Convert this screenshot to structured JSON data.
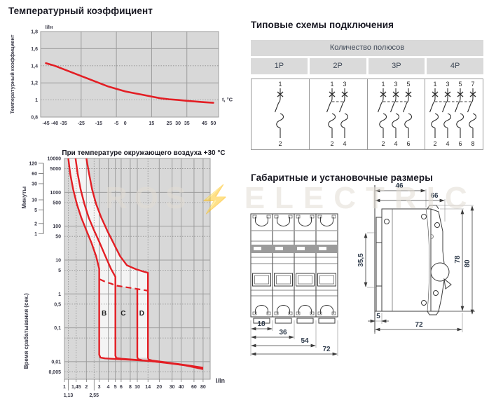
{
  "watermark": {
    "left": "ROS",
    "bolt": "⚡",
    "right": "ELECTRIC"
  },
  "sections": {
    "schemes": {
      "title": "Типовые схемы подключения",
      "header": "Количество полюсов",
      "columns": [
        {
          "label": "1P",
          "poles": 1,
          "top_terminals": [
            "1"
          ],
          "bottom_terminals": [
            "2"
          ]
        },
        {
          "label": "2P",
          "poles": 2,
          "top_terminals": [
            "1",
            "3"
          ],
          "bottom_terminals": [
            "2",
            "4"
          ]
        },
        {
          "label": "3P",
          "poles": 3,
          "top_terminals": [
            "1",
            "3",
            "5"
          ],
          "bottom_terminals": [
            "2",
            "4",
            "6"
          ]
        },
        {
          "label": "4P",
          "poles": 4,
          "top_terminals": [
            "1",
            "3",
            "5",
            "7"
          ],
          "bottom_terminals": [
            "2",
            "4",
            "6",
            "8"
          ]
        }
      ]
    },
    "dimensions": {
      "title": "Габаритные и установочные размеры",
      "front": {
        "dims": [
          "18",
          "36",
          "54",
          "72"
        ]
      },
      "side": {
        "top_small": "46",
        "top_wide": "66",
        "left": "35,5",
        "right_inner": "78",
        "right_outer": "80",
        "bottom_small": "5",
        "bottom_wide": "72"
      }
    }
  },
  "chart_data": [
    {
      "id": "temperature_coefficient",
      "type": "line",
      "title": "Температурный коэффициент",
      "xlabel": "t, °C",
      "ylabel": "Температурный коэффициент",
      "top_axis_label": "I/Iн",
      "xlim": [
        -48,
        53
      ],
      "ylim": [
        0.8,
        1.8
      ],
      "line_color": "#e31e24",
      "grid": {
        "x_solid": [
          -25,
          -5,
          15,
          35
        ],
        "y_solid": [
          1.6,
          1.2
        ],
        "y_dotted": [
          1.4,
          1.0
        ]
      },
      "x_ticks": [
        [
          -45,
          "-45"
        ],
        [
          -40,
          "-40"
        ],
        [
          -35,
          "-35"
        ],
        [
          -25,
          "-25"
        ],
        [
          -15,
          "-15"
        ],
        [
          -5,
          "-5"
        ],
        [
          0,
          "0"
        ],
        [
          15,
          "15"
        ],
        [
          25,
          "25"
        ],
        [
          30,
          "30"
        ],
        [
          35,
          "35"
        ],
        [
          45,
          "45"
        ],
        [
          50,
          "50"
        ]
      ],
      "y_ticks": [
        [
          0.8,
          "0,8"
        ],
        [
          1,
          "1"
        ],
        [
          1.2,
          "1,2"
        ],
        [
          1.4,
          "1,4"
        ],
        [
          1.6,
          "1,6"
        ],
        [
          1.8,
          "1,8"
        ]
      ],
      "points": [
        [
          -45,
          1.43
        ],
        [
          -40,
          1.4
        ],
        [
          -35,
          1.36
        ],
        [
          -30,
          1.32
        ],
        [
          -25,
          1.28
        ],
        [
          -20,
          1.24
        ],
        [
          -15,
          1.2
        ],
        [
          -10,
          1.16
        ],
        [
          -5,
          1.13
        ],
        [
          0,
          1.1
        ],
        [
          5,
          1.08
        ],
        [
          10,
          1.06
        ],
        [
          15,
          1.04
        ],
        [
          20,
          1.02
        ],
        [
          25,
          1.008
        ],
        [
          30,
          1.0
        ],
        [
          35,
          0.99
        ],
        [
          40,
          0.982
        ],
        [
          45,
          0.974
        ],
        [
          50,
          0.967
        ]
      ]
    },
    {
      "id": "trip_curves",
      "type": "line-loglog",
      "title": "При температуре окружающего воздуха +30 °C",
      "xlabel": "I/In",
      "ylabel": "Время срабатывания (сек.)",
      "ylabel_minutes": "Минуты",
      "xlim": [
        1,
        100
      ],
      "ylim": [
        0.003,
        10000
      ],
      "line_color": "#e31e24",
      "grid": {
        "x_solid": [
          1,
          2,
          3,
          4,
          5,
          6,
          8,
          10,
          20,
          30,
          40,
          60,
          80,
          100
        ],
        "x_dotted": [
          1.13,
          1.45,
          2.55,
          14
        ],
        "y_solid": [
          10000,
          1000,
          100,
          10,
          1,
          0.1,
          0.01
        ],
        "y_dotted": [
          5000,
          500,
          50,
          5,
          0.5,
          0.05,
          0.005
        ]
      },
      "x_ticks_row1": [
        [
          1,
          "1"
        ],
        [
          1.45,
          "1,45"
        ],
        [
          2,
          "2"
        ],
        [
          3,
          "3"
        ],
        [
          4,
          "4"
        ],
        [
          5,
          "5"
        ],
        [
          6,
          "6"
        ],
        [
          8,
          "8"
        ],
        [
          10,
          "10"
        ],
        [
          14,
          "14"
        ],
        [
          20,
          "20"
        ],
        [
          30,
          "30"
        ],
        [
          40,
          "40"
        ],
        [
          60,
          "60"
        ],
        [
          80,
          "80"
        ]
      ],
      "x_ticks_row2": [
        [
          1.13,
          "1,13"
        ],
        [
          2.55,
          "2,55"
        ]
      ],
      "y_ticks_seconds": [
        [
          10000,
          "10000"
        ],
        [
          5000,
          "5000"
        ],
        [
          1000,
          "1000"
        ],
        [
          500,
          "500"
        ],
        [
          100,
          "100"
        ],
        [
          50,
          "50"
        ],
        [
          10,
          "10"
        ],
        [
          5,
          "5"
        ],
        [
          1,
          "1"
        ],
        [
          0.5,
          "0,5"
        ],
        [
          0.1,
          "0,1"
        ],
        [
          0.01,
          "0,01"
        ],
        [
          0.005,
          "0,005"
        ]
      ],
      "y_ticks_minutes": [
        [
          7200,
          "120"
        ],
        [
          3600,
          "60"
        ],
        [
          1800,
          "30"
        ],
        [
          600,
          "10"
        ],
        [
          300,
          "5"
        ],
        [
          120,
          "2"
        ],
        [
          60,
          "1"
        ]
      ],
      "zones": [
        {
          "label": "B",
          "x": 3.5,
          "y": 0.23
        },
        {
          "label": "C",
          "x": 6.4,
          "y": 0.23
        },
        {
          "label": "D",
          "x": 11.5,
          "y": 0.23
        }
      ],
      "curves": {
        "b_min": [
          [
            1.13,
            10000
          ],
          [
            1.2,
            3500
          ],
          [
            1.32,
            1200
          ],
          [
            1.48,
            450
          ],
          [
            1.7,
            180
          ],
          [
            2.0,
            75
          ],
          [
            2.35,
            32
          ],
          [
            2.72,
            13
          ],
          [
            3.0,
            5.5
          ],
          [
            3.0,
            0.016
          ],
          [
            3.12,
            0.0132
          ],
          [
            3.6,
            0.0125
          ],
          [
            5,
            0.012
          ],
          [
            8,
            0.0114
          ],
          [
            12,
            0.0108
          ],
          [
            20,
            0.0098
          ],
          [
            35,
            0.0086
          ],
          [
            55,
            0.0075
          ],
          [
            80,
            0.0066
          ]
        ],
        "c_min": [
          [
            1.42,
            10000
          ],
          [
            1.52,
            3500
          ],
          [
            1.67,
            1200
          ],
          [
            1.88,
            450
          ],
          [
            2.15,
            180
          ],
          [
            2.55,
            75
          ],
          [
            3.05,
            32
          ],
          [
            3.65,
            13
          ],
          [
            4.35,
            5.5
          ],
          [
            5.0,
            3.2
          ],
          [
            5.0,
            0.015
          ],
          [
            5.15,
            0.0128
          ],
          [
            6,
            0.0122
          ],
          [
            9,
            0.0114
          ],
          [
            14,
            0.0106
          ],
          [
            25,
            0.0092
          ],
          [
            45,
            0.0078
          ],
          [
            80,
            0.0063
          ]
        ],
        "d_max": [
          [
            2.0,
            10000
          ],
          [
            2.18,
            3500
          ],
          [
            2.4,
            1200
          ],
          [
            2.72,
            450
          ],
          [
            3.2,
            180
          ],
          [
            3.85,
            75
          ],
          [
            4.7,
            32
          ],
          [
            5.8,
            13
          ],
          [
            7.2,
            7
          ],
          [
            9.5,
            5.4
          ],
          [
            12,
            4.6
          ],
          [
            14,
            4.2
          ],
          [
            14,
            0.013
          ],
          [
            14.3,
            0.0115
          ],
          [
            16,
            0.0108
          ],
          [
            25,
            0.0095
          ],
          [
            45,
            0.0078
          ],
          [
            80,
            0.006
          ]
        ],
        "d_min_vertical": [
          [
            10,
            1.4
          ],
          [
            10,
            0.0135
          ],
          [
            10.25,
            0.0118
          ],
          [
            11.5,
            0.0112
          ]
        ],
        "dashed": [
          [
            3.05,
            2.7
          ],
          [
            3.6,
            2.3
          ],
          [
            4.4,
            2.0
          ],
          [
            5.0,
            1.78
          ],
          [
            5.5,
            1.72
          ],
          [
            7,
            1.58
          ],
          [
            8.5,
            1.48
          ],
          [
            10,
            1.4
          ],
          [
            11.5,
            1.33
          ],
          [
            13.2,
            1.27
          ],
          [
            14,
            1.24
          ]
        ]
      },
      "bands": [
        [
          [
            1.13,
            10000
          ],
          [
            1.2,
            3500
          ],
          [
            1.32,
            1200
          ],
          [
            1.48,
            450
          ],
          [
            1.7,
            180
          ],
          [
            2.0,
            75
          ],
          [
            2.35,
            32
          ],
          [
            2.72,
            13
          ],
          [
            3.0,
            5.5
          ],
          [
            3.0,
            0.016
          ],
          [
            3.12,
            0.0132
          ],
          [
            3.6,
            0.0125
          ],
          [
            5.2,
            0.0119
          ],
          [
            5.15,
            0.0128
          ],
          [
            5.0,
            0.015
          ],
          [
            5.0,
            3.2
          ],
          [
            4.35,
            5.5
          ],
          [
            3.65,
            13
          ],
          [
            3.05,
            32
          ],
          [
            2.55,
            75
          ],
          [
            2.15,
            180
          ],
          [
            1.88,
            450
          ],
          [
            1.67,
            1200
          ],
          [
            1.52,
            3500
          ],
          [
            1.42,
            10000
          ]
        ],
        [
          [
            1.42,
            10000
          ],
          [
            1.52,
            3500
          ],
          [
            1.67,
            1200
          ],
          [
            1.88,
            450
          ],
          [
            2.15,
            180
          ],
          [
            2.55,
            75
          ],
          [
            3.05,
            32
          ],
          [
            3.65,
            13
          ],
          [
            4.35,
            5.5
          ],
          [
            5.0,
            3.2
          ],
          [
            5.0,
            1.78
          ],
          [
            5.5,
            1.72
          ],
          [
            7,
            1.58
          ],
          [
            8.5,
            1.48
          ],
          [
            10,
            1.4
          ],
          [
            11.5,
            1.33
          ],
          [
            13.2,
            1.27
          ],
          [
            14,
            1.24
          ],
          [
            14,
            4.2
          ],
          [
            12,
            4.6
          ],
          [
            9.5,
            5.4
          ],
          [
            7.2,
            7
          ],
          [
            5.8,
            13
          ],
          [
            4.7,
            32
          ],
          [
            3.85,
            75
          ],
          [
            3.2,
            180
          ],
          [
            2.72,
            450
          ],
          [
            2.4,
            1200
          ],
          [
            2.18,
            3500
          ],
          [
            2.0,
            10000
          ]
        ],
        [
          [
            10,
            1.4
          ],
          [
            11.5,
            1.33
          ],
          [
            13.2,
            1.27
          ],
          [
            14,
            1.24
          ],
          [
            14,
            0.013
          ],
          [
            10,
            0.013
          ]
        ]
      ]
    }
  ]
}
